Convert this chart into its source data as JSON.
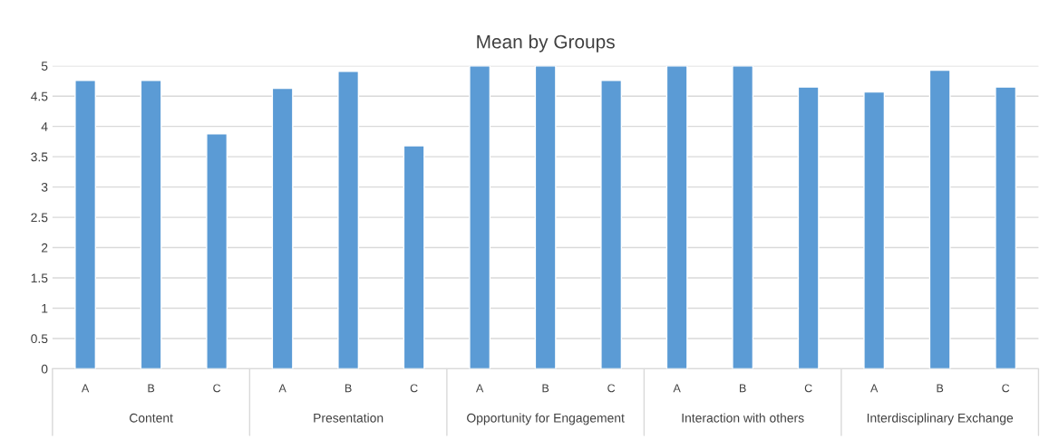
{
  "chart_data": {
    "type": "bar",
    "title": "Mean by Groups",
    "categories": [
      "A",
      "B",
      "C",
      "A",
      "B",
      "C",
      "A",
      "B",
      "C",
      "A",
      "B",
      "C",
      "A",
      "B",
      "C"
    ],
    "values": [
      4.76,
      4.76,
      3.88,
      4.63,
      4.91,
      3.68,
      5,
      5,
      4.76,
      5,
      5,
      4.65,
      4.57,
      4.93,
      4.65
    ],
    "color": "#5b9bd5",
    "ylim": [
      0,
      5
    ],
    "yticks": [
      0,
      0.5,
      1,
      1.5,
      2,
      2.5,
      3,
      3.5,
      4,
      4.5,
      5
    ],
    "grid": "y",
    "annotations": [
      "Content",
      "Presentation",
      "Opportunity for Engagement",
      "Interaction with others",
      "Interdisciplinary Exchange"
    ]
  }
}
